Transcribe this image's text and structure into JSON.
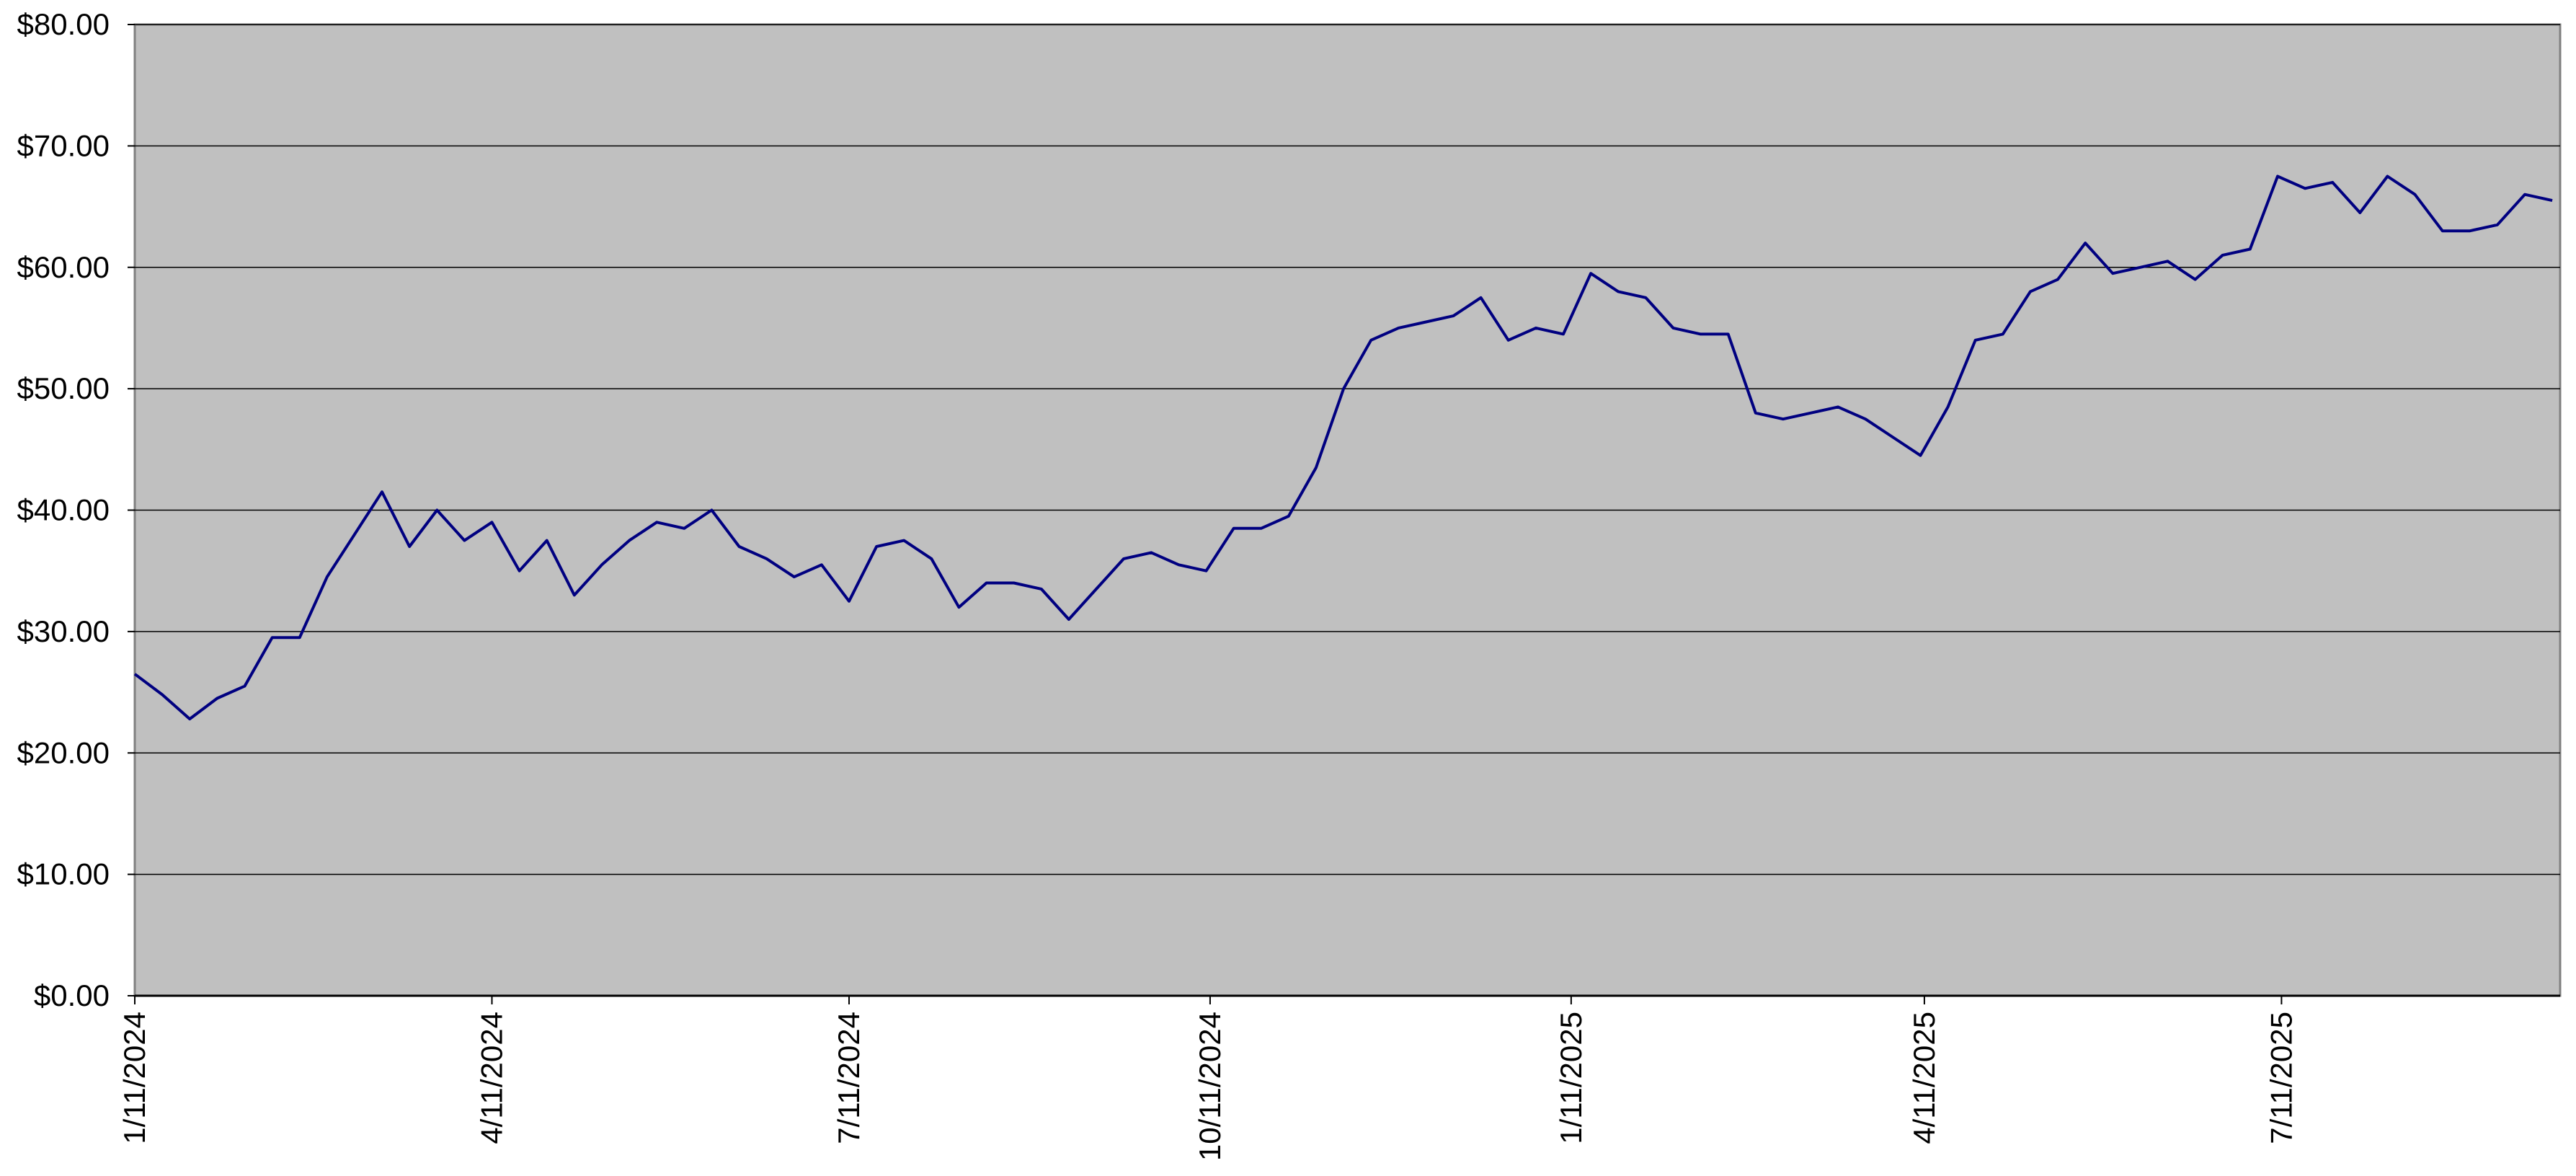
{
  "chart_data": {
    "type": "line",
    "x": [
      "2024-01-11",
      "2024-01-18",
      "2024-01-25",
      "2024-02-01",
      "2024-02-08",
      "2024-02-15",
      "2024-02-22",
      "2024-02-29",
      "2024-03-07",
      "2024-03-14",
      "2024-03-21",
      "2024-03-28",
      "2024-04-04",
      "2024-04-11",
      "2024-04-18",
      "2024-04-25",
      "2024-05-02",
      "2024-05-09",
      "2024-05-16",
      "2024-05-23",
      "2024-05-30",
      "2024-06-06",
      "2024-06-13",
      "2024-06-20",
      "2024-06-27",
      "2024-07-04",
      "2024-07-11",
      "2024-07-18",
      "2024-07-25",
      "2024-08-01",
      "2024-08-08",
      "2024-08-15",
      "2024-08-22",
      "2024-08-29",
      "2024-09-05",
      "2024-09-12",
      "2024-09-19",
      "2024-09-26",
      "2024-10-03",
      "2024-10-10",
      "2024-10-17",
      "2024-10-24",
      "2024-10-31",
      "2024-11-07",
      "2024-11-14",
      "2024-11-21",
      "2024-11-28",
      "2024-12-05",
      "2024-12-12",
      "2024-12-19",
      "2024-12-26",
      "2025-01-02",
      "2025-01-09",
      "2025-01-16",
      "2025-01-23",
      "2025-01-30",
      "2025-02-06",
      "2025-02-13",
      "2025-02-20",
      "2025-02-27",
      "2025-03-06",
      "2025-03-13",
      "2025-03-20",
      "2025-03-27",
      "2025-04-03",
      "2025-04-10",
      "2025-04-17",
      "2025-04-24",
      "2025-05-01",
      "2025-05-08",
      "2025-05-15",
      "2025-05-22",
      "2025-05-29",
      "2025-06-05",
      "2025-06-12",
      "2025-06-19",
      "2025-06-26",
      "2025-07-03",
      "2025-07-10",
      "2025-07-17",
      "2025-07-24",
      "2025-07-31",
      "2025-08-07",
      "2025-08-14",
      "2025-08-21",
      "2025-08-28",
      "2025-09-04",
      "2025-09-11",
      "2025-09-18"
    ],
    "series": [
      {
        "color": "#000080",
        "values": [
          26.5,
          24.8,
          22.8,
          24.5,
          25.5,
          29.5,
          29.5,
          34.5,
          38,
          41.5,
          37,
          40,
          37.5,
          39,
          35,
          37.5,
          33,
          35.5,
          37.5,
          39,
          38.5,
          40,
          37,
          36,
          34.5,
          35.5,
          32.5,
          37,
          37.5,
          36,
          32,
          34,
          34,
          33.5,
          31,
          33.5,
          36,
          36.5,
          35.5,
          35,
          38.5,
          38.5,
          39.5,
          43.5,
          50,
          54,
          55,
          55.5,
          56,
          57.5,
          54,
          55,
          54.5,
          59.5,
          58,
          57.5,
          55,
          54.5,
          54.5,
          48,
          47.5,
          48,
          48.5,
          47.5,
          46,
          44.5,
          48.5,
          54,
          54.5,
          58,
          59,
          62,
          59.5,
          60,
          60.5,
          59,
          61,
          61.5,
          67.5,
          66.5,
          67,
          64.5,
          67.5,
          66,
          63,
          63,
          63.5,
          66,
          65.5
        ]
      }
    ],
    "xlim": [
      "2024-01-11",
      "2025-09-20"
    ],
    "xticks": [
      {
        "value": "2024-01-11",
        "label": "1/11/2024"
      },
      {
        "value": "2024-04-11",
        "label": "4/11/2024"
      },
      {
        "value": "2024-07-11",
        "label": "7/11/2024"
      },
      {
        "value": "2024-10-11",
        "label": "10/11/2024"
      },
      {
        "value": "2025-01-11",
        "label": "1/11/2025"
      },
      {
        "value": "2025-04-11",
        "label": "4/11/2025"
      },
      {
        "value": "2025-07-11",
        "label": "7/11/2025"
      }
    ],
    "ylim": [
      0,
      80
    ],
    "yticks": [
      {
        "value": 0,
        "label": "$0.00"
      },
      {
        "value": 10,
        "label": "$10.00"
      },
      {
        "value": 20,
        "label": "$20.00"
      },
      {
        "value": 30,
        "label": "$30.00"
      },
      {
        "value": 40,
        "label": "$40.00"
      },
      {
        "value": 50,
        "label": "$50.00"
      },
      {
        "value": 60,
        "label": "$60.00"
      },
      {
        "value": 70,
        "label": "$70.00"
      },
      {
        "value": 80,
        "label": "$80.00"
      }
    ],
    "grid": true,
    "background": "#c0c0c0"
  }
}
